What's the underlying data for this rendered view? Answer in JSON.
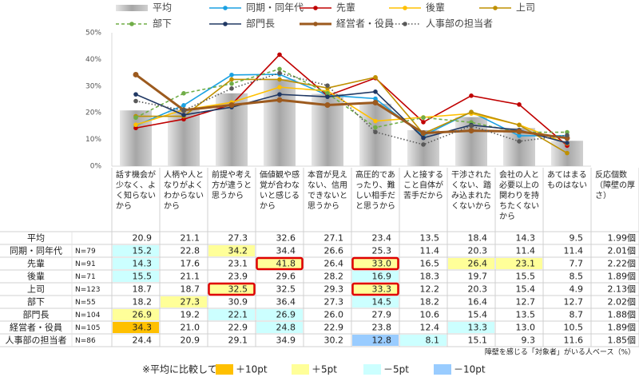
{
  "chart_data": {
    "type": "bar",
    "categories": [
      "話す機会が少なく、よく知らないから",
      "人柄や人となりがよくわからないから",
      "前提や考え方が違うと思うから",
      "価値観や感覚が合わないと感じるから",
      "本音が見えない、信用できないと思うから",
      "高圧的であったり、難しい相手だと思うから",
      "人と接すること自体が苦手だから",
      "干渉されたくない、踏み込まれたくないから",
      "会社の人と必要以上の関わりを持ちたくないから",
      "あてはまるものはない"
    ],
    "count_header": "反応個数（障壁の厚さ）",
    "ylim": [
      0,
      50
    ],
    "yticks": [
      {
        "value": 0,
        "label": "0%"
      },
      {
        "value": 10,
        "label": "10%"
      },
      {
        "value": 20,
        "label": "20%"
      },
      {
        "value": 30,
        "label": "30%"
      },
      {
        "value": 40,
        "label": "40%"
      },
      {
        "value": 50,
        "label": "50%"
      }
    ],
    "grid": false,
    "series": [
      {
        "name": "平均",
        "type": "bar",
        "color": "#a6a6a6",
        "values": [
          20.9,
          21.1,
          27.3,
          32.6,
          27.1,
          23.4,
          13.5,
          18.4,
          14.3,
          9.5
        ],
        "count": "1.99個"
      },
      {
        "name": "同期・同年代",
        "type": "line",
        "color": "#1ba1e2",
        "n": "N=79",
        "values": [
          15.2,
          22.8,
          34.2,
          34.4,
          26.6,
          25.3,
          11.4,
          20.3,
          11.4,
          11.4
        ],
        "count": "2.01個"
      },
      {
        "name": "先輩",
        "type": "line",
        "color": "#c00000",
        "n": "N=91",
        "values": [
          14.3,
          17.6,
          23.1,
          41.8,
          26.4,
          33.0,
          16.5,
          26.4,
          23.1,
          7.7
        ],
        "value_labels": [
          "14.3",
          "17.6",
          "23.1",
          "41.8",
          "26.4",
          "33.0",
          "16.5",
          "26.4",
          "23.1",
          "7.7"
        ],
        "count": "2.22個"
      },
      {
        "name": "後輩",
        "type": "line",
        "color": "#ffc000",
        "n": "N=71",
        "values": [
          15.5,
          21.1,
          23.9,
          29.6,
          28.2,
          16.9,
          18.3,
          19.7,
          15.5,
          8.5
        ],
        "count": "1.89個"
      },
      {
        "name": "上司",
        "type": "line",
        "color": "#bf9000",
        "n": "N=123",
        "values": [
          18.7,
          18.7,
          32.5,
          32.5,
          29.3,
          33.3,
          12.2,
          20.3,
          15.4,
          4.9
        ],
        "count": "2.13個"
      },
      {
        "name": "部下",
        "type": "line",
        "color": "#70ad47",
        "dash": "4 3",
        "n": "N=55",
        "values": [
          18.2,
          27.3,
          30.9,
          36.4,
          27.3,
          14.5,
          18.2,
          16.4,
          12.7,
          12.7
        ],
        "count": "2.02個"
      },
      {
        "name": "部門長",
        "type": "line",
        "color": "#203864",
        "n": "N=104",
        "values": [
          26.9,
          19.2,
          22.1,
          26.9,
          26.0,
          27.9,
          10.6,
          15.4,
          13.5,
          8.7
        ],
        "value_labels": [
          "26.9",
          "19.2",
          "22.1",
          "26.9",
          "26.0",
          "27.9",
          "10.6",
          "15.4",
          "13.5",
          "8.7"
        ],
        "count": "1.88個"
      },
      {
        "name": "経営者・役員",
        "type": "line",
        "color": "#9c5a1e",
        "width": 3,
        "n": "N=105",
        "values": [
          34.3,
          21.0,
          22.9,
          24.8,
          22.9,
          23.8,
          12.4,
          13.3,
          13.0,
          10.5
        ],
        "value_labels": [
          "34.3",
          "21.0",
          "22.9",
          "24.8",
          "22.9",
          "23.8",
          "12.4",
          "13.3",
          "13.0",
          "10.5"
        ],
        "count": "1.89個"
      },
      {
        "name": "人事部の担当者",
        "type": "line",
        "color": "#595959",
        "dash": "1.5 2.5",
        "n": "N=86",
        "values": [
          24.4,
          20.9,
          29.1,
          34.9,
          30.2,
          12.8,
          8.1,
          15.1,
          9.3,
          11.6
        ],
        "count": "1.85個"
      }
    ],
    "highlight_legend": {
      "title": "※平均に比較して",
      "items": [
        {
          "label": "＋10pt",
          "color": "#ffc000"
        },
        {
          "label": "＋5pt",
          "color": "#ffff99"
        },
        {
          "label": "－5pt",
          "color": "#ccffff"
        },
        {
          "label": "－10pt",
          "color": "#99ccff"
        }
      ]
    },
    "highlights": [
      {
        "row": 1,
        "col": 0,
        "level": 2
      },
      {
        "row": 1,
        "col": 2,
        "level": 1
      },
      {
        "row": 2,
        "col": 0,
        "level": 2
      },
      {
        "row": 2,
        "col": 3,
        "level": 1
      },
      {
        "row": 2,
        "col": 5,
        "level": 1
      },
      {
        "row": 2,
        "col": 7,
        "level": 1
      },
      {
        "row": 2,
        "col": 8,
        "level": 1
      },
      {
        "row": 3,
        "col": 0,
        "level": 2
      },
      {
        "row": 3,
        "col": 5,
        "level": 2
      },
      {
        "row": 4,
        "col": 2,
        "level": 1
      },
      {
        "row": 4,
        "col": 5,
        "level": 1
      },
      {
        "row": 5,
        "col": 1,
        "level": 1
      },
      {
        "row": 5,
        "col": 5,
        "level": 2
      },
      {
        "row": 6,
        "col": 0,
        "level": 1
      },
      {
        "row": 6,
        "col": 2,
        "level": 2
      },
      {
        "row": 6,
        "col": 3,
        "level": 2
      },
      {
        "row": 7,
        "col": 0,
        "level": 0
      },
      {
        "row": 7,
        "col": 3,
        "level": 2
      },
      {
        "row": 7,
        "col": 7,
        "level": 2
      },
      {
        "row": 8,
        "col": 5,
        "level": 3
      },
      {
        "row": 8,
        "col": 6,
        "level": 2
      }
    ],
    "boxed": [
      {
        "row": 2,
        "col": 3
      },
      {
        "row": 2,
        "col": 5
      },
      {
        "row": 4,
        "col": 2
      },
      {
        "row": 4,
        "col": 5
      }
    ],
    "note": "障壁を感じる「対象者」がいる人ベース（%）"
  }
}
